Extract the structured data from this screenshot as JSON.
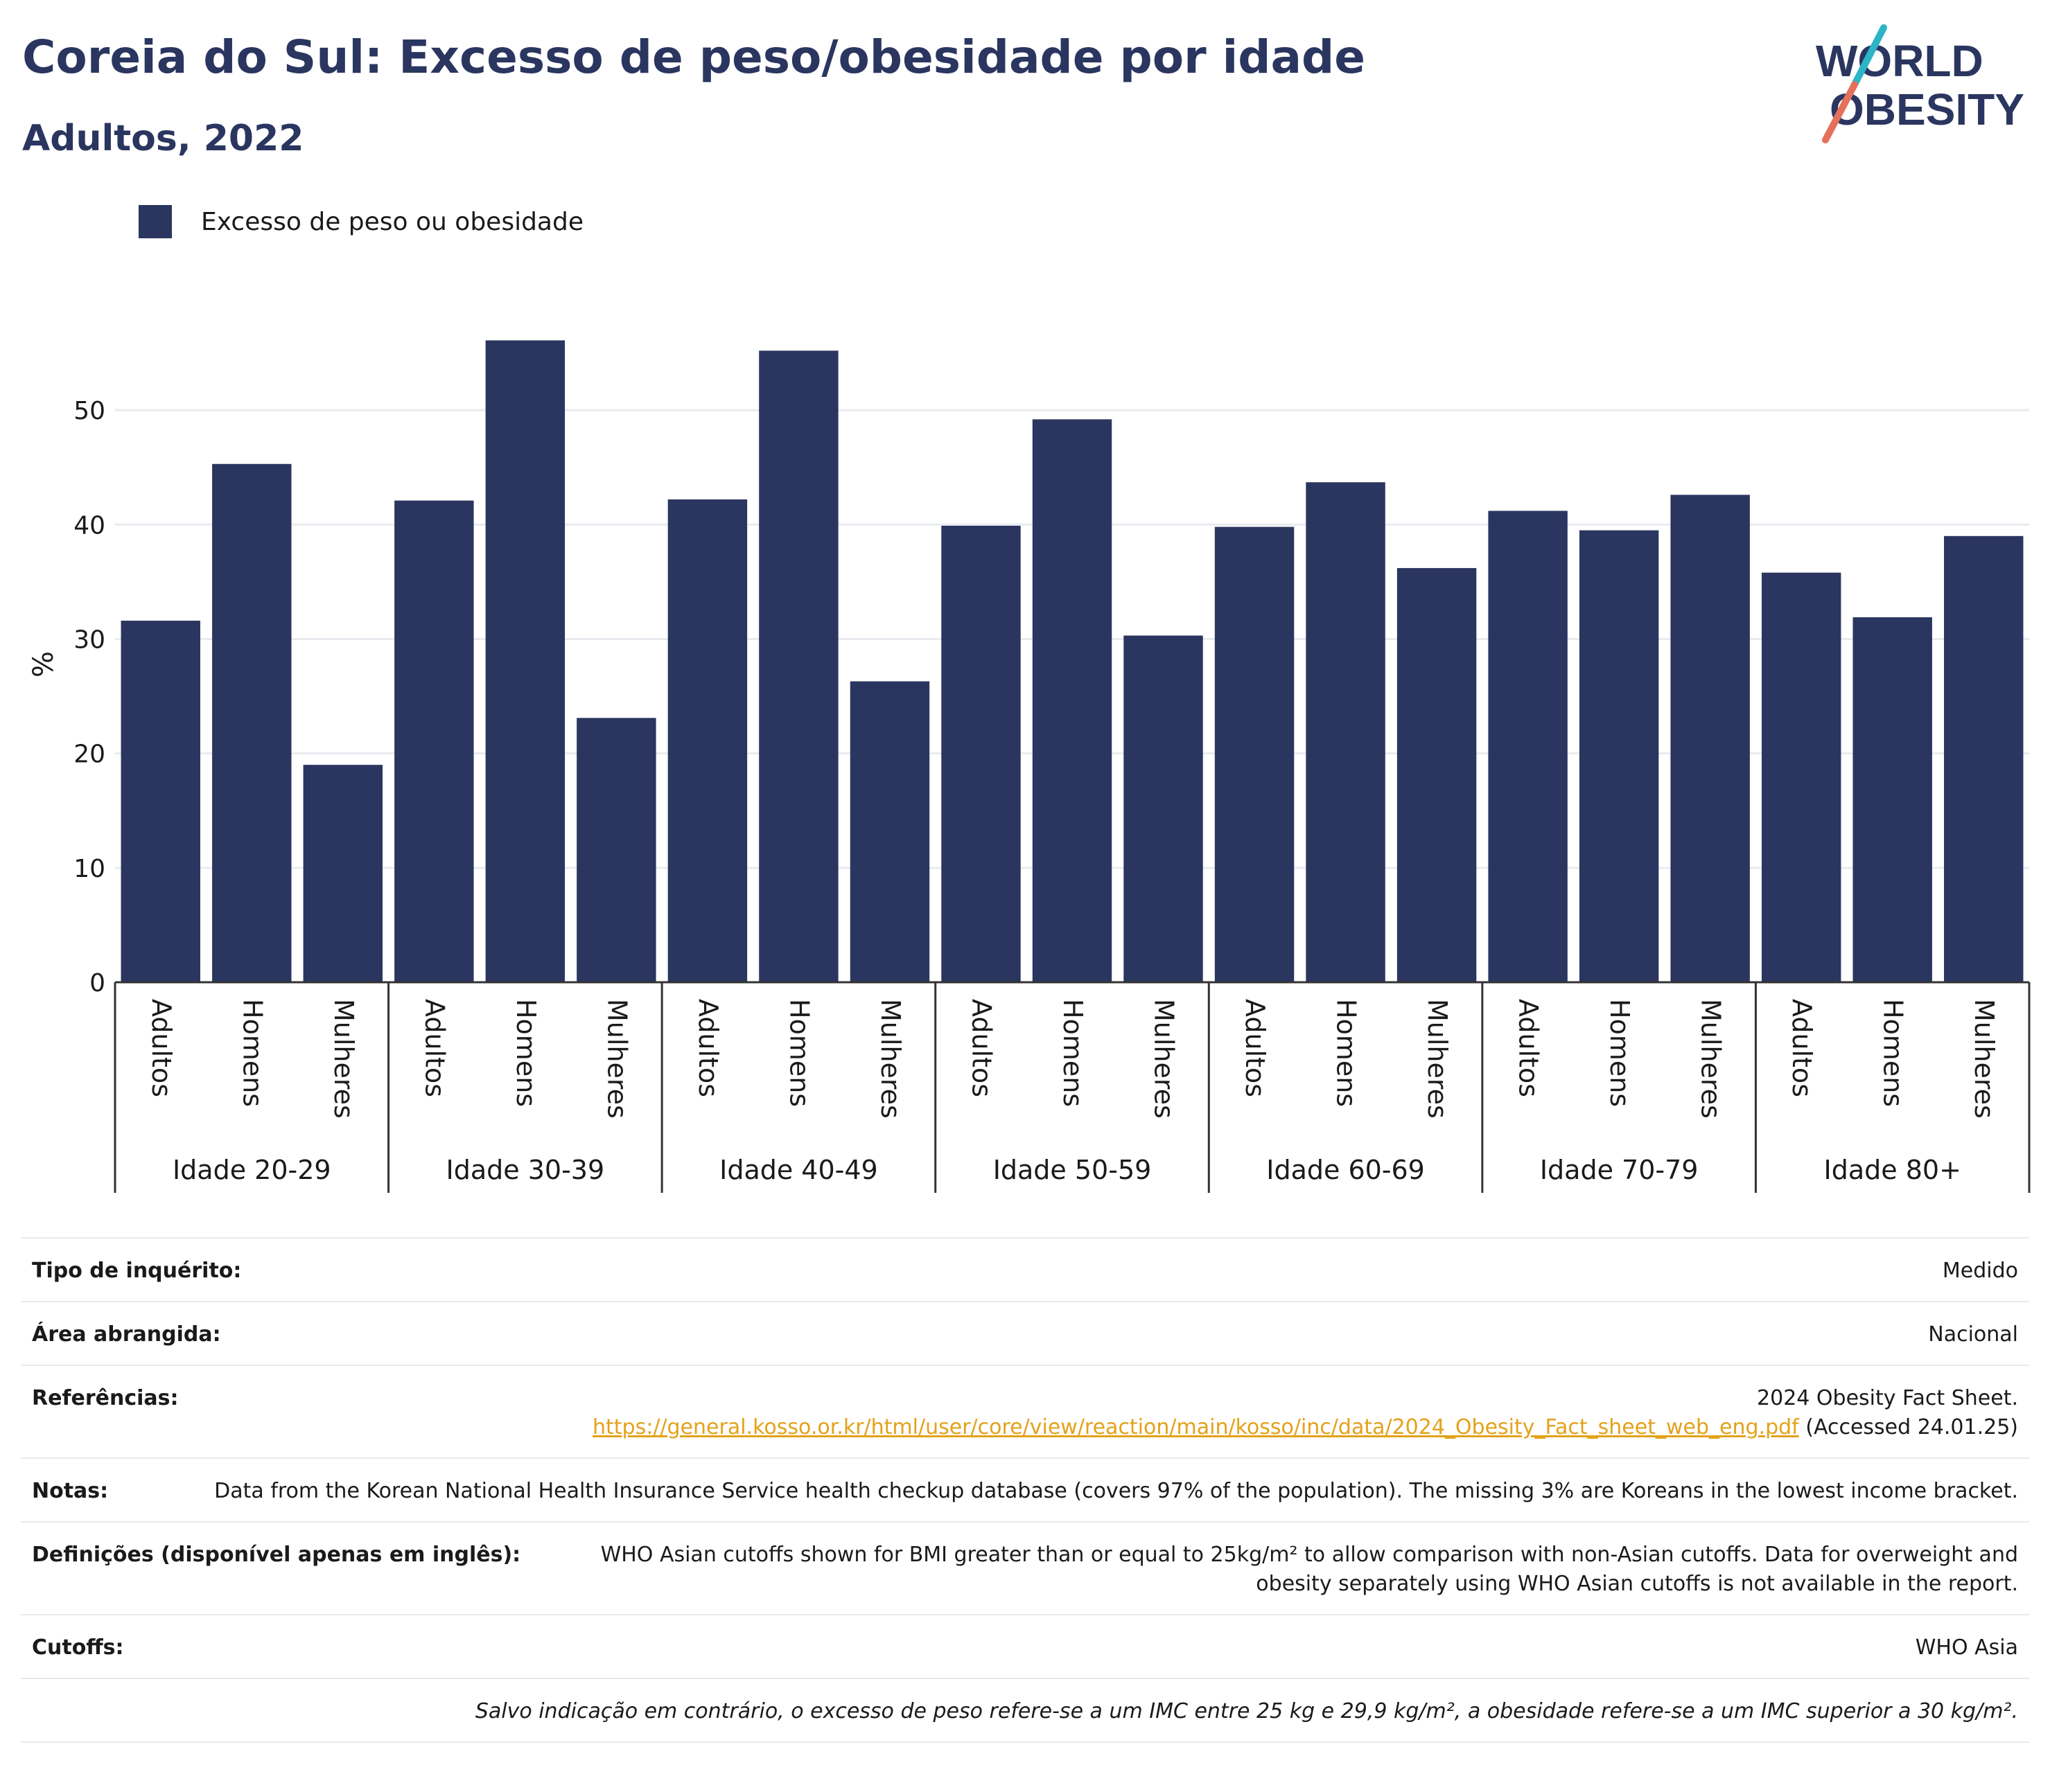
{
  "header": {
    "title": "Coreia do Sul: Excesso de peso/obesidade por idade",
    "subtitle": "Adultos, 2022"
  },
  "logo": {
    "line1": "WORLD",
    "line2": "OBESITY"
  },
  "colors": {
    "bar": "#2a365f",
    "title": "#2a365f",
    "link": "#e3a21a",
    "logo_teal": "#2bb5c7",
    "logo_coral": "#e5705c"
  },
  "chart_data": {
    "type": "bar",
    "ylabel": "%",
    "ylim": [
      0,
      58
    ],
    "yticks": [
      0,
      10,
      20,
      30,
      40,
      50
    ],
    "grid": true,
    "legend_position": "top-left",
    "series": [
      {
        "name": "Excesso de peso ou obesidade"
      }
    ],
    "groups": [
      {
        "label": "Idade 20-29",
        "categories": [
          "Adultos",
          "Homens",
          "Mulheres"
        ],
        "values": [
          31.6,
          45.3,
          19.0
        ]
      },
      {
        "label": "Idade 30-39",
        "categories": [
          "Adultos",
          "Homens",
          "Mulheres"
        ],
        "values": [
          42.1,
          56.1,
          23.1
        ]
      },
      {
        "label": "Idade 40-49",
        "categories": [
          "Adultos",
          "Homens",
          "Mulheres"
        ],
        "values": [
          42.2,
          55.2,
          26.3
        ]
      },
      {
        "label": "Idade 50-59",
        "categories": [
          "Adultos",
          "Homens",
          "Mulheres"
        ],
        "values": [
          39.9,
          49.2,
          30.3
        ]
      },
      {
        "label": "Idade 60-69",
        "categories": [
          "Adultos",
          "Homens",
          "Mulheres"
        ],
        "values": [
          39.8,
          43.7,
          36.2
        ]
      },
      {
        "label": "Idade 70-79",
        "categories": [
          "Adultos",
          "Homens",
          "Mulheres"
        ],
        "values": [
          41.2,
          39.5,
          42.6
        ]
      },
      {
        "label": "Idade 80+",
        "categories": [
          "Adultos",
          "Homens",
          "Mulheres"
        ],
        "values": [
          35.8,
          31.9,
          39.0
        ]
      }
    ]
  },
  "info": {
    "rows": [
      {
        "label": "Tipo de inquérito:",
        "value": "Medido"
      },
      {
        "label": "Área abrangida:",
        "value": "Nacional"
      },
      {
        "label": "Referências:",
        "value": "2024 Obesity Fact Sheet.",
        "link": "https://general.kosso.or.kr/html/user/core/view/reaction/main/kosso/inc/data/2024_Obesity_Fact_sheet_web_eng.pdf",
        "suffix": " (Accessed 24.01.25)"
      },
      {
        "label": "Notas:",
        "value": "Data from the Korean National Health Insurance Service health checkup database (covers 97% of the population). The missing 3% are Koreans in the lowest income bracket."
      },
      {
        "label": "Definições (disponível apenas em inglês):",
        "value": "WHO Asian cutoffs shown for BMI greater than or equal to 25kg/m² to allow comparison with non-Asian cutoffs. Data for overweight and obesity separately using WHO Asian cutoffs is not available in the report."
      },
      {
        "label": "Cutoffs:",
        "value": "WHO Asia"
      }
    ],
    "footnote": "Salvo indicação em contrário, o excesso de peso refere-se a um IMC entre 25 kg e 29,9 kg/m², a obesidade refere-se a um IMC superior a 30 kg/m²."
  }
}
